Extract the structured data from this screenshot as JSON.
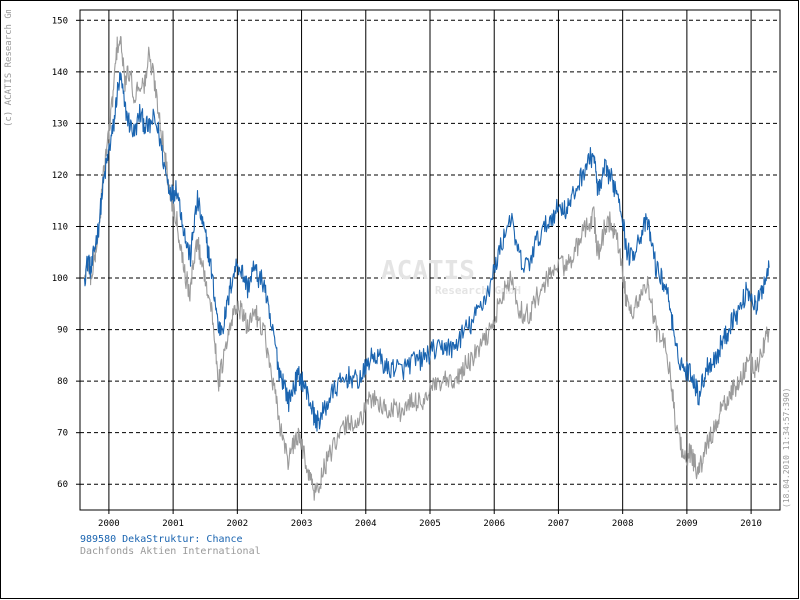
{
  "copyright": "(c) ACATIS Research GmbH",
  "timestamp": "(18.04.2010 11:34:57:390)",
  "watermark": {
    "main": "ACATIS",
    "sub": "Research GmbH"
  },
  "colors": {
    "fund": "#1a64b0",
    "benchmark": "#9b9b9b",
    "grid": "#000000",
    "muted_text": "#999999",
    "watermark": "#e4e4e4"
  },
  "legend": [
    {
      "label": "989580 DekaStruktur: Chance",
      "color": "#1a64b0"
    },
    {
      "label": "Dachfonds Aktien International",
      "color": "#999999"
    }
  ],
  "chart_data": {
    "type": "line",
    "title": "",
    "xlabel": "",
    "ylabel": "",
    "xlim": [
      1999.55,
      2010.45
    ],
    "ylim": [
      55,
      152
    ],
    "grid": true,
    "yticks": [
      60,
      70,
      80,
      90,
      100,
      110,
      120,
      130,
      140,
      150
    ],
    "xtick_labels": [
      "2000",
      "2001",
      "2002",
      "2003",
      "2004",
      "2005",
      "2006",
      "2007",
      "2008",
      "2009",
      "2010"
    ],
    "year_boundaries": [
      2000,
      2001,
      2002,
      2003,
      2004,
      2005,
      2006,
      2007,
      2008,
      2009,
      2010
    ],
    "series": [
      {
        "name": "989580 DekaStruktur: Chance",
        "color": "#1a64b0",
        "points": [
          [
            1999.62,
            100
          ],
          [
            1999.68,
            104
          ],
          [
            1999.72,
            101
          ],
          [
            1999.78,
            106
          ],
          [
            1999.84,
            110
          ],
          [
            1999.9,
            117
          ],
          [
            1999.96,
            122
          ],
          [
            2000.02,
            126
          ],
          [
            2000.08,
            130
          ],
          [
            2000.13,
            136
          ],
          [
            2000.18,
            139
          ],
          [
            2000.25,
            133
          ],
          [
            2000.32,
            130
          ],
          [
            2000.4,
            128
          ],
          [
            2000.48,
            132
          ],
          [
            2000.55,
            130
          ],
          [
            2000.62,
            129
          ],
          [
            2000.7,
            131
          ],
          [
            2000.78,
            128
          ],
          [
            2000.86,
            122
          ],
          [
            2000.93,
            118
          ],
          [
            2001.0,
            116
          ],
          [
            2001.05,
            118
          ],
          [
            2001.12,
            113
          ],
          [
            2001.2,
            107
          ],
          [
            2001.27,
            104
          ],
          [
            2001.32,
            110
          ],
          [
            2001.38,
            115
          ],
          [
            2001.45,
            111
          ],
          [
            2001.52,
            107
          ],
          [
            2001.58,
            103
          ],
          [
            2001.65,
            96
          ],
          [
            2001.71,
            90
          ],
          [
            2001.78,
            91
          ],
          [
            2001.85,
            95
          ],
          [
            2001.92,
            100
          ],
          [
            2002.0,
            103
          ],
          [
            2002.08,
            101
          ],
          [
            2002.16,
            98
          ],
          [
            2002.25,
            102
          ],
          [
            2002.33,
            100
          ],
          [
            2002.42,
            99
          ],
          [
            2002.5,
            92
          ],
          [
            2002.58,
            88
          ],
          [
            2002.65,
            82
          ],
          [
            2002.72,
            80
          ],
          [
            2002.8,
            76
          ],
          [
            2002.88,
            79
          ],
          [
            2002.95,
            81
          ],
          [
            2003.02,
            80
          ],
          [
            2003.1,
            77
          ],
          [
            2003.16,
            75
          ],
          [
            2003.22,
            72
          ],
          [
            2003.3,
            73
          ],
          [
            2003.38,
            75
          ],
          [
            2003.45,
            77
          ],
          [
            2003.55,
            79
          ],
          [
            2003.65,
            80
          ],
          [
            2003.75,
            81
          ],
          [
            2003.85,
            80
          ],
          [
            2003.95,
            81
          ],
          [
            2004.05,
            84
          ],
          [
            2004.15,
            85
          ],
          [
            2004.25,
            84
          ],
          [
            2004.35,
            82
          ],
          [
            2004.45,
            83
          ],
          [
            2004.55,
            82
          ],
          [
            2004.65,
            83
          ],
          [
            2004.75,
            84
          ],
          [
            2004.85,
            84
          ],
          [
            2004.95,
            85
          ],
          [
            2005.05,
            86
          ],
          [
            2005.15,
            86
          ],
          [
            2005.25,
            87
          ],
          [
            2005.35,
            86
          ],
          [
            2005.45,
            88
          ],
          [
            2005.55,
            90
          ],
          [
            2005.65,
            91
          ],
          [
            2005.75,
            94
          ],
          [
            2005.85,
            96
          ],
          [
            2005.95,
            99
          ],
          [
            2006.05,
            104
          ],
          [
            2006.15,
            108
          ],
          [
            2006.25,
            112
          ],
          [
            2006.35,
            106
          ],
          [
            2006.45,
            102
          ],
          [
            2006.55,
            103
          ],
          [
            2006.65,
            107
          ],
          [
            2006.75,
            109
          ],
          [
            2006.85,
            111
          ],
          [
            2006.95,
            113
          ],
          [
            2007.05,
            114
          ],
          [
            2007.12,
            113
          ],
          [
            2007.2,
            115
          ],
          [
            2007.3,
            118
          ],
          [
            2007.4,
            121
          ],
          [
            2007.48,
            123
          ],
          [
            2007.55,
            124
          ],
          [
            2007.6,
            118
          ],
          [
            2007.65,
            117
          ],
          [
            2007.72,
            121
          ],
          [
            2007.8,
            120
          ],
          [
            2007.86,
            118
          ],
          [
            2007.92,
            117
          ],
          [
            2008.0,
            112
          ],
          [
            2008.05,
            106
          ],
          [
            2008.12,
            104
          ],
          [
            2008.2,
            106
          ],
          [
            2008.3,
            109
          ],
          [
            2008.38,
            111
          ],
          [
            2008.45,
            107
          ],
          [
            2008.52,
            102
          ],
          [
            2008.6,
            100
          ],
          [
            2008.68,
            98
          ],
          [
            2008.75,
            94
          ],
          [
            2008.82,
            86
          ],
          [
            2008.9,
            84
          ],
          [
            2008.97,
            82
          ],
          [
            2009.05,
            82
          ],
          [
            2009.12,
            80
          ],
          [
            2009.18,
            77
          ],
          [
            2009.25,
            80
          ],
          [
            2009.32,
            83
          ],
          [
            2009.4,
            84
          ],
          [
            2009.48,
            85
          ],
          [
            2009.55,
            88
          ],
          [
            2009.62,
            89
          ],
          [
            2009.7,
            92
          ],
          [
            2009.78,
            93
          ],
          [
            2009.86,
            95
          ],
          [
            2009.94,
            98
          ],
          [
            2010.02,
            96
          ],
          [
            2010.08,
            94
          ],
          [
            2010.15,
            97
          ],
          [
            2010.22,
            100
          ],
          [
            2010.28,
            102
          ]
        ]
      },
      {
        "name": "Dachfonds Aktien International",
        "color": "#9b9b9b",
        "points": [
          [
            1999.62,
            100
          ],
          [
            1999.68,
            103
          ],
          [
            1999.72,
            100
          ],
          [
            1999.78,
            104
          ],
          [
            1999.84,
            109
          ],
          [
            1999.9,
            118
          ],
          [
            1999.96,
            125
          ],
          [
            2000.02,
            130
          ],
          [
            2000.08,
            138
          ],
          [
            2000.13,
            145
          ],
          [
            2000.18,
            146
          ],
          [
            2000.25,
            138
          ],
          [
            2000.32,
            140
          ],
          [
            2000.4,
            135
          ],
          [
            2000.48,
            138
          ],
          [
            2000.55,
            137
          ],
          [
            2000.62,
            143
          ],
          [
            2000.7,
            139
          ],
          [
            2000.78,
            132
          ],
          [
            2000.86,
            125
          ],
          [
            2000.93,
            118
          ],
          [
            2001.0,
            114
          ],
          [
            2001.05,
            112
          ],
          [
            2001.12,
            106
          ],
          [
            2001.2,
            100
          ],
          [
            2001.27,
            97
          ],
          [
            2001.32,
            104
          ],
          [
            2001.38,
            107
          ],
          [
            2001.45,
            103
          ],
          [
            2001.52,
            99
          ],
          [
            2001.58,
            95
          ],
          [
            2001.65,
            88
          ],
          [
            2001.71,
            80
          ],
          [
            2001.78,
            84
          ],
          [
            2001.85,
            88
          ],
          [
            2001.92,
            92
          ],
          [
            2002.0,
            95
          ],
          [
            2002.08,
            93
          ],
          [
            2002.16,
            90
          ],
          [
            2002.25,
            94
          ],
          [
            2002.33,
            92
          ],
          [
            2002.42,
            90
          ],
          [
            2002.5,
            83
          ],
          [
            2002.58,
            78
          ],
          [
            2002.65,
            72
          ],
          [
            2002.72,
            69
          ],
          [
            2002.8,
            64
          ],
          [
            2002.88,
            68
          ],
          [
            2002.95,
            69
          ],
          [
            2003.02,
            67
          ],
          [
            2003.1,
            63
          ],
          [
            2003.16,
            60
          ],
          [
            2003.22,
            58
          ],
          [
            2003.3,
            61
          ],
          [
            2003.38,
            64
          ],
          [
            2003.45,
            66
          ],
          [
            2003.55,
            68
          ],
          [
            2003.65,
            71
          ],
          [
            2003.75,
            72
          ],
          [
            2003.85,
            72
          ],
          [
            2003.95,
            73
          ],
          [
            2004.05,
            76
          ],
          [
            2004.15,
            77
          ],
          [
            2004.25,
            75
          ],
          [
            2004.35,
            74
          ],
          [
            2004.45,
            75
          ],
          [
            2004.55,
            74
          ],
          [
            2004.65,
            75
          ],
          [
            2004.75,
            76
          ],
          [
            2004.85,
            76
          ],
          [
            2004.95,
            77
          ],
          [
            2005.05,
            79
          ],
          [
            2005.15,
            79
          ],
          [
            2005.25,
            80
          ],
          [
            2005.35,
            79
          ],
          [
            2005.45,
            81
          ],
          [
            2005.55,
            83
          ],
          [
            2005.65,
            84
          ],
          [
            2005.75,
            86
          ],
          [
            2005.85,
            88
          ],
          [
            2005.95,
            90
          ],
          [
            2006.05,
            94
          ],
          [
            2006.15,
            97
          ],
          [
            2006.25,
            100
          ],
          [
            2006.35,
            95
          ],
          [
            2006.45,
            93
          ],
          [
            2006.55,
            93
          ],
          [
            2006.65,
            96
          ],
          [
            2006.75,
            98
          ],
          [
            2006.85,
            100
          ],
          [
            2006.95,
            102
          ],
          [
            2007.05,
            103
          ],
          [
            2007.12,
            102
          ],
          [
            2007.2,
            104
          ],
          [
            2007.3,
            106
          ],
          [
            2007.4,
            109
          ],
          [
            2007.48,
            111
          ],
          [
            2007.55,
            112
          ],
          [
            2007.6,
            106
          ],
          [
            2007.65,
            105
          ],
          [
            2007.72,
            110
          ],
          [
            2007.8,
            111
          ],
          [
            2007.86,
            109
          ],
          [
            2007.92,
            107
          ],
          [
            2008.0,
            101
          ],
          [
            2008.05,
            96
          ],
          [
            2008.12,
            93
          ],
          [
            2008.2,
            95
          ],
          [
            2008.3,
            97
          ],
          [
            2008.38,
            99
          ],
          [
            2008.45,
            95
          ],
          [
            2008.52,
            90
          ],
          [
            2008.6,
            88
          ],
          [
            2008.68,
            86
          ],
          [
            2008.75,
            81
          ],
          [
            2008.82,
            72
          ],
          [
            2008.9,
            68
          ],
          [
            2008.97,
            65
          ],
          [
            2009.05,
            66
          ],
          [
            2009.12,
            64
          ],
          [
            2009.18,
            62
          ],
          [
            2009.25,
            65
          ],
          [
            2009.32,
            68
          ],
          [
            2009.4,
            70
          ],
          [
            2009.48,
            72
          ],
          [
            2009.55,
            75
          ],
          [
            2009.62,
            76
          ],
          [
            2009.7,
            78
          ],
          [
            2009.78,
            79
          ],
          [
            2009.86,
            81
          ],
          [
            2009.94,
            84
          ],
          [
            2010.02,
            83
          ],
          [
            2010.08,
            82
          ],
          [
            2010.15,
            85
          ],
          [
            2010.22,
            88
          ],
          [
            2010.28,
            90
          ]
        ]
      }
    ]
  }
}
